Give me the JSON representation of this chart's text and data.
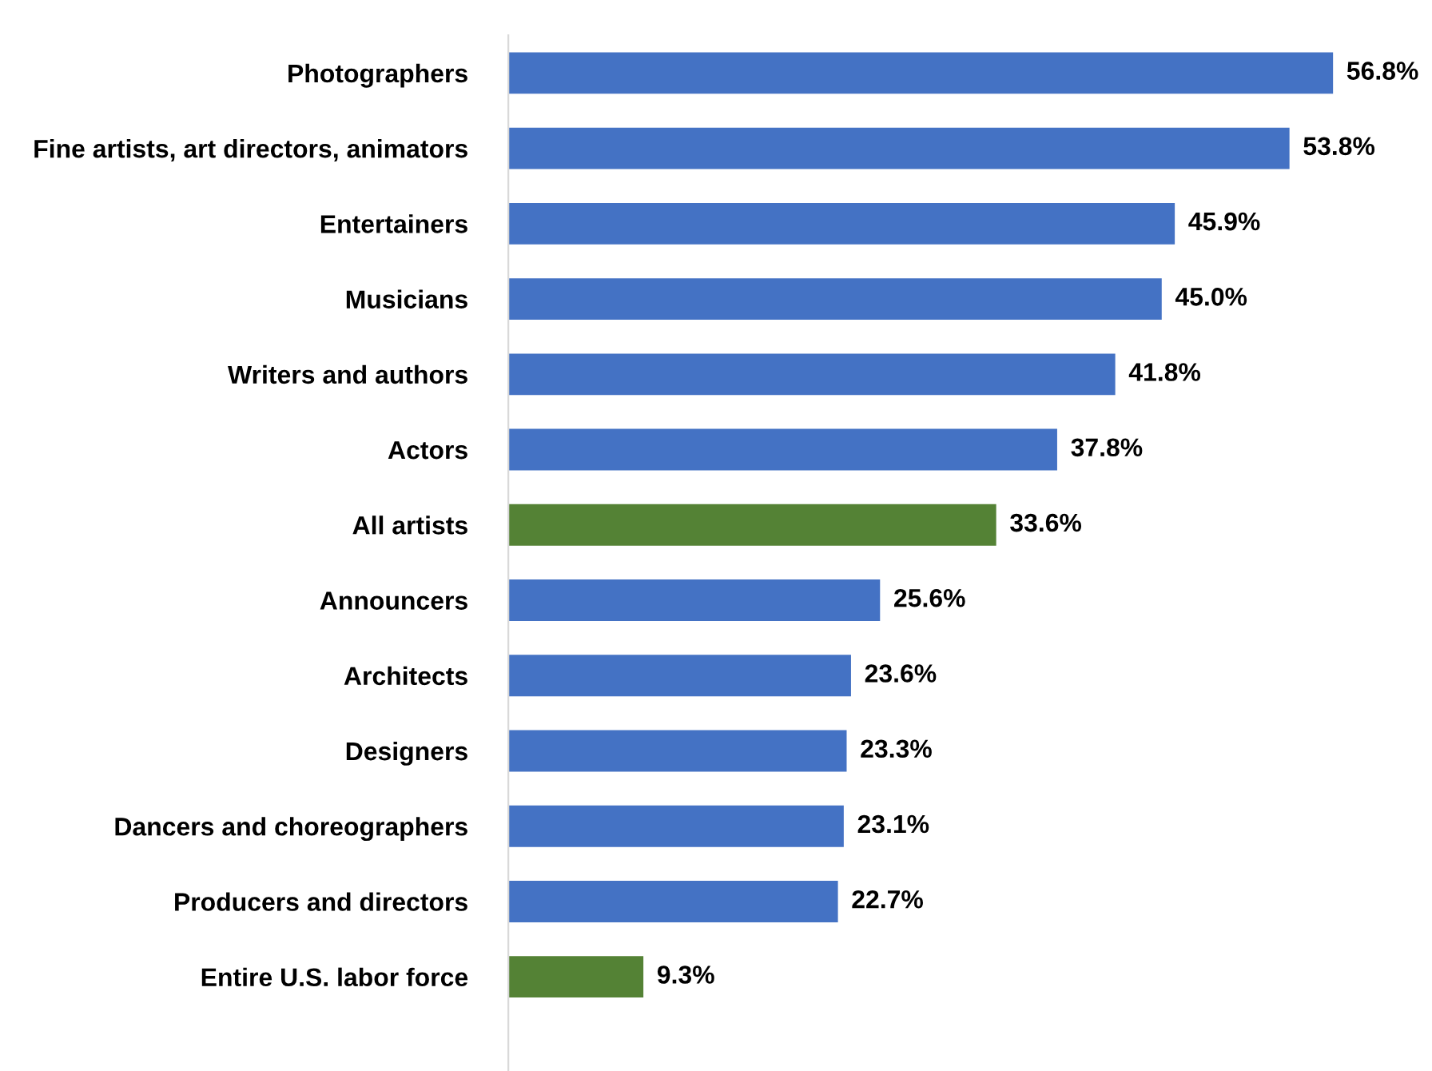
{
  "chart_data": {
    "type": "bar",
    "orientation": "horizontal",
    "data_labels": true,
    "grid": false,
    "legend": false,
    "categories": [
      "Photographers",
      "Fine artists, art directors, animators",
      "Entertainers",
      "Musicians",
      "Writers and authors",
      "Actors",
      "All artists",
      "Announcers",
      "Architects",
      "Designers",
      "Dancers and choreographers",
      "Producers and directors",
      "Entire U.S. labor force"
    ],
    "values": [
      56.8,
      53.8,
      45.9,
      45.0,
      41.8,
      37.8,
      33.6,
      25.6,
      23.6,
      23.3,
      23.1,
      22.7,
      9.3
    ],
    "value_labels": [
      "56.8%",
      "53.8%",
      "45.9%",
      "45.0%",
      "41.8%",
      "37.8%",
      "33.6%",
      "25.6%",
      "23.6%",
      "23.3%",
      "23.1%",
      "22.7%",
      "9.3%"
    ],
    "colors": [
      "#4472c4",
      "#4472c4",
      "#4472c4",
      "#4472c4",
      "#4472c4",
      "#4472c4",
      "#548235",
      "#4472c4",
      "#4472c4",
      "#4472c4",
      "#4472c4",
      "#4472c4",
      "#548235"
    ]
  }
}
